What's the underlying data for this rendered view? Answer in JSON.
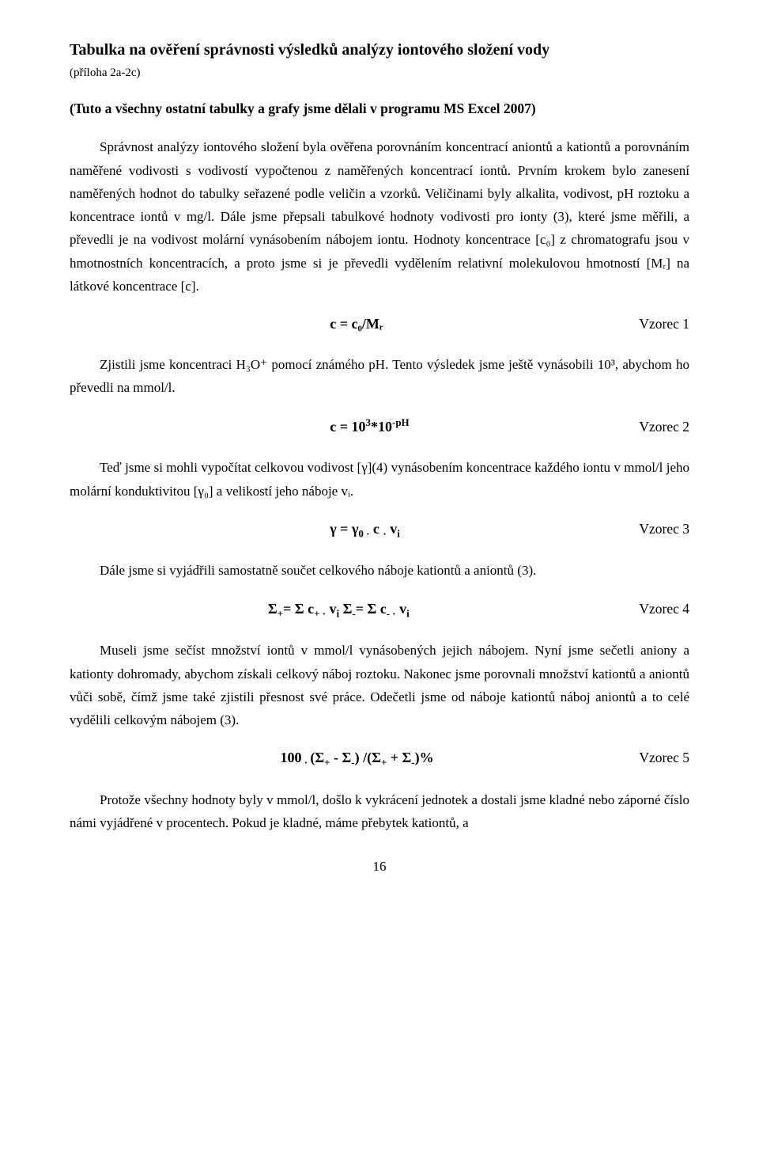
{
  "title": "Tabulka na ověření správnosti výsledků analýzy iontového složení vody",
  "subtitle": "(příloha 2a-2c)",
  "intro": "(Tuto a všechny ostatní tabulky a grafy jsme dělali v programu MS Excel 2007)",
  "para1": "Správnost analýzy iontového složení byla ověřena porovnáním koncentrací aniontů a kationtů a porovnáním naměřené vodivosti s vodivostí vypočtenou z naměřených koncentrací iontů. Prvním krokem bylo zanesení naměřených hodnot do tabulky seřazené podle veličin a vzorků. Veličinami byly alkalita, vodivost, pH roztoku a koncentrace iontů v mg/l. Dále jsme přepsali tabulkové hodnoty vodivosti pro ionty (3), které jsme měřili, a převedli je na vodivost molární vynásobením nábojem iontu. Hodnoty koncentrace [c₀] z chromatografu jsou v hmotnostních koncentracích, a proto jsme si je převedli vydělením relativní molekulovou hmotností [Mᵣ] na látkové koncentrace [c].",
  "formula1": {
    "expr": "c = c₀/Mᵣ",
    "label": "Vzorec 1"
  },
  "para2": "Zjistili jsme koncentraci H₃O⁺ pomocí známého pH. Tento výsledek jsme ještě vynásobili 10³, abychom ho převedli na mmol/l.",
  "formula2": {
    "expr_html": "c = 10<sup>3</sup>*10<sup>-pH</sup>",
    "label": "Vzorec 2"
  },
  "para3": "Teď jsme si mohli vypočítat celkovou vodivost [γ](4) vynásobením koncentrace každého iontu v mmol/l jeho molární konduktivitou [γ₀] a velikostí jeho náboje vᵢ.",
  "formula3": {
    "expr_html": "γ = γ<sub>0 ·</sub> c <sub>·</sub> v<sub>i</sub>",
    "label": "Vzorec 3"
  },
  "para4": "Dále jsme si vyjádřili samostatně součet celkového náboje kationtů a aniontů (3).",
  "formula4": {
    "expr_html": "Σ<sub>+</sub>= Σ c<sub>+ ·</sub> v<sub>i</sub> Σ<sub>-</sub>= Σ c<sub>- ·</sub> v<sub>i</sub>",
    "label": "Vzorec 4"
  },
  "para5": "Museli jsme sečíst množství iontů v mmol/l vynásobených jejich nábojem. Nyní jsme sečetli aniony a kationty dohromady, abychom získali celkový náboj roztoku. Nakonec jsme porovnali množství kationtů a aniontů vůči sobě, čímž jsme také zjistili přesnost své práce. Odečetli jsme od náboje kationtů náboj aniontů a to celé vydělili celkovým nábojem (3).",
  "formula5": {
    "expr_html": "100<sub> · </sub>(Σ<sub>+</sub> - Σ<sub>-</sub>) /(Σ<sub>+</sub> + Σ<sub>-</sub>)%",
    "label": "Vzorec 5"
  },
  "para6": "Protože všechny hodnoty byly v mmol/l, došlo k vykrácení jednotek a dostali jsme kladné nebo záporné číslo námi vyjádřené v  procentech. Pokud je kladné, máme přebytek kationtů, a",
  "page_number": "16"
}
